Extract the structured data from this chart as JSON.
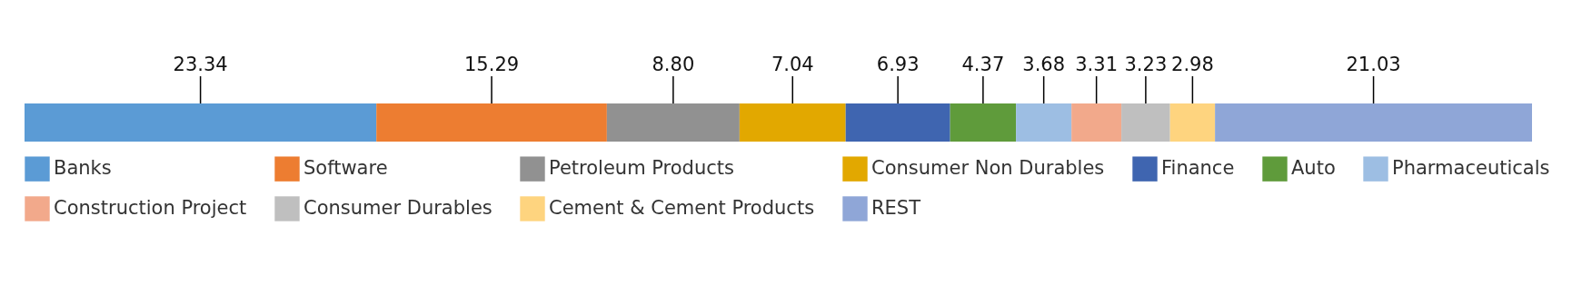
{
  "chart_data": {
    "type": "bar",
    "orientation": "horizontal",
    "stacked": true,
    "categories": [
      null
    ],
    "legend": "bottom",
    "series": [
      {
        "name": "Banks",
        "color": "#5b9bd5",
        "values": [
          23.34
        ],
        "value_labels": [
          "23.34"
        ]
      },
      {
        "name": "Software",
        "color": "#ed7d31",
        "values": [
          15.29
        ],
        "value_labels": [
          "15.29"
        ]
      },
      {
        "name": "Petroleum Products",
        "color": "#919191",
        "values": [
          8.8
        ],
        "value_labels": [
          "8.80"
        ]
      },
      {
        "name": "Consumer Non Durables",
        "color": "#e2a800",
        "values": [
          7.04
        ],
        "value_labels": [
          "7.04"
        ]
      },
      {
        "name": "Finance",
        "color": "#3f65b0",
        "values": [
          6.93
        ],
        "value_labels": [
          "6.93"
        ]
      },
      {
        "name": "Auto",
        "color": "#5f9b3b",
        "values": [
          4.37
        ],
        "value_labels": [
          "4.37"
        ]
      },
      {
        "name": "Pharmaceuticals",
        "color": "#9dbee3",
        "values": [
          3.68
        ],
        "value_labels": [
          "3.68"
        ]
      },
      {
        "name": "Construction Project",
        "color": "#f2a98b",
        "values": [
          3.31
        ],
        "value_labels": [
          "3.31"
        ]
      },
      {
        "name": "Consumer Durables",
        "color": "#bfbfbf",
        "values": [
          3.23
        ],
        "value_labels": [
          "3.23"
        ]
      },
      {
        "name": "Cement & Cement Products",
        "color": "#fed47f",
        "values": [
          2.98
        ],
        "value_labels": [
          "2.98"
        ]
      },
      {
        "name": "REST",
        "color": "#8fa6d7",
        "values": [
          21.03
        ],
        "value_labels": [
          "21.03"
        ]
      }
    ]
  }
}
